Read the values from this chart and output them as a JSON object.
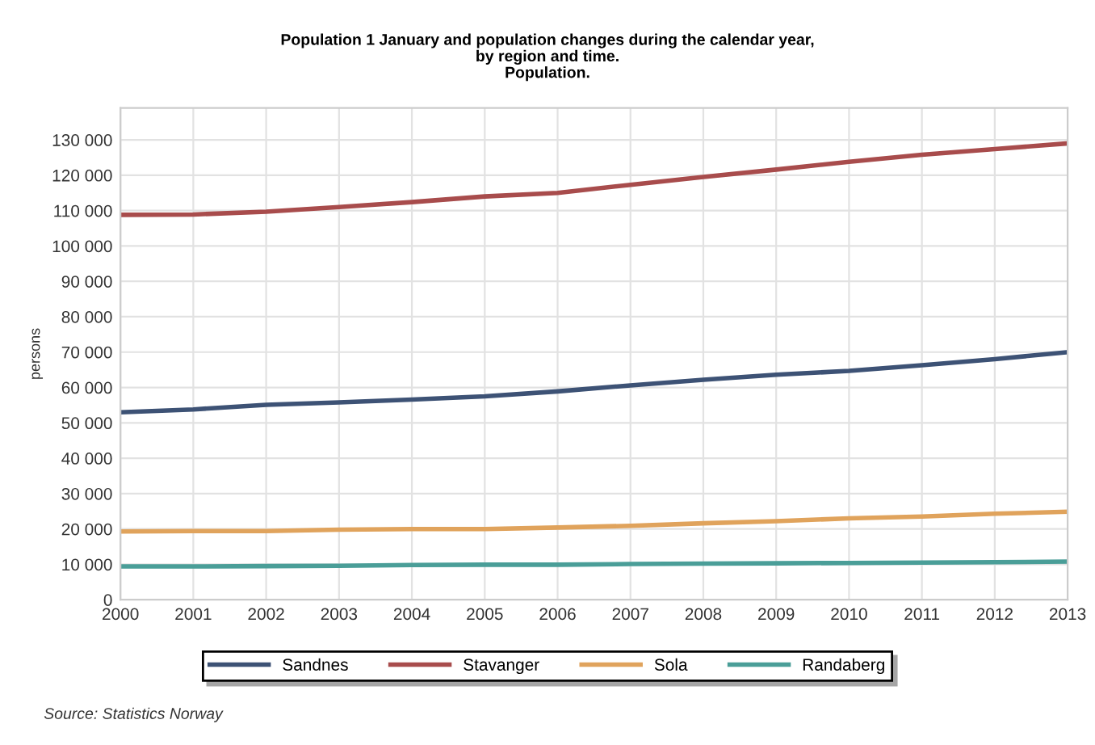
{
  "chart_data": {
    "type": "line",
    "title": "Population 1 January and population changes during the calendar year,\nby region and time.\nPopulation.",
    "ylabel": "persons",
    "x": [
      2000,
      2001,
      2002,
      2003,
      2004,
      2005,
      2006,
      2007,
      2008,
      2009,
      2010,
      2011,
      2012,
      2013
    ],
    "series": [
      {
        "name": "Sandnes",
        "color": "#3d5275",
        "values": [
          53000,
          53800,
          55100,
          55800,
          56600,
          57500,
          58900,
          60600,
          62200,
          63600,
          64700,
          66300,
          68000,
          70000
        ]
      },
      {
        "name": "Stavanger",
        "color": "#a84c4c",
        "values": [
          108800,
          108900,
          109700,
          111000,
          112400,
          114000,
          115000,
          117300,
          119500,
          121600,
          123800,
          125800,
          127400,
          129000
        ]
      },
      {
        "name": "Sola",
        "color": "#e0a35c",
        "values": [
          19300,
          19400,
          19400,
          19800,
          20000,
          20000,
          20400,
          20900,
          21600,
          22200,
          23000,
          23500,
          24300,
          24900
        ]
      },
      {
        "name": "Randaberg",
        "color": "#4a9e98",
        "values": [
          9400,
          9400,
          9500,
          9600,
          9800,
          9900,
          9900,
          10100,
          10200,
          10300,
          10400,
          10500,
          10600,
          10800
        ]
      }
    ],
    "xlim": [
      2000,
      2013
    ],
    "xticks": [
      2000,
      2001,
      2002,
      2003,
      2004,
      2005,
      2006,
      2007,
      2008,
      2009,
      2010,
      2011,
      2012,
      2013
    ],
    "ylim": [
      0,
      139000
    ],
    "yticks": [
      0,
      {
        "value": 10000,
        "label": "10 000"
      },
      {
        "value": 20000,
        "label": "20 000"
      },
      {
        "value": 30000,
        "label": "30 000"
      },
      {
        "value": 40000,
        "label": "40 000"
      },
      {
        "value": 50000,
        "label": "50 000"
      },
      {
        "value": 60000,
        "label": "60 000"
      },
      {
        "value": 70000,
        "label": "70 000"
      },
      {
        "value": 80000,
        "label": "80 000"
      },
      {
        "value": 90000,
        "label": "90 000"
      },
      {
        "value": 100000,
        "label": "100 000"
      },
      {
        "value": 110000,
        "label": "110 000"
      },
      {
        "value": 120000,
        "label": "120 000"
      },
      {
        "value": 130000,
        "label": "130 000"
      }
    ],
    "grid": true,
    "legend": "bottom",
    "marker": "none",
    "line_style": "solid",
    "annotations": [
      "Source: Statistics Norway"
    ]
  }
}
